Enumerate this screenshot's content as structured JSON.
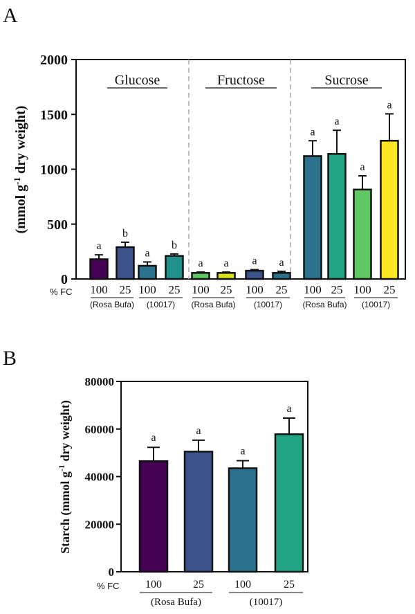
{
  "chart_data": [
    {
      "panel": "A",
      "type": "bar",
      "ylabel": "(mmol g-1 dry weight)",
      "ylabel_main": "(mmol g",
      "ylabel_sup": "-1",
      "ylabel_tail": " dry weight)",
      "ylim": [
        0,
        2000
      ],
      "yticks": [
        "0",
        "500",
        "1000",
        "1500",
        "2000"
      ],
      "ytick_values": [
        0,
        500,
        1000,
        1500,
        2000
      ],
      "x_prefix": "% FC",
      "groups": [
        {
          "name": "Glucose",
          "bars": [
            {
              "fc": "100",
              "genotype": "Rosa Bufa",
              "value": 180,
              "error": 40,
              "letter": "a",
              "color": "#440154"
            },
            {
              "fc": "25",
              "genotype": "Rosa Bufa",
              "value": 290,
              "error": 45,
              "letter": "b",
              "color": "#3b528b"
            },
            {
              "fc": "100",
              "genotype": "10017",
              "value": 120,
              "error": 35,
              "letter": "a",
              "color": "#2c728e"
            },
            {
              "fc": "25",
              "genotype": "10017",
              "value": 210,
              "error": 18,
              "letter": "b",
              "color": "#21918c"
            }
          ],
          "genotype_labels": [
            "(Rosa Bufa)",
            "(10017)"
          ]
        },
        {
          "name": "Fructose",
          "bars": [
            {
              "fc": "100",
              "genotype": "Rosa Bufa",
              "value": 55,
              "error": 8,
              "letter": "a",
              "color": "#5ec962"
            },
            {
              "fc": "25",
              "genotype": "Rosa Bufa",
              "value": 55,
              "error": 8,
              "letter": "a",
              "color": "#d7e219"
            },
            {
              "fc": "100",
              "genotype": "10017",
              "value": 75,
              "error": 10,
              "letter": "a",
              "color": "#3b528b"
            },
            {
              "fc": "25",
              "genotype": "10017",
              "value": 55,
              "error": 15,
              "letter": "a",
              "color": "#2c728e"
            }
          ],
          "genotype_labels": [
            "(Rosa Bufa)",
            "(10017)"
          ]
        },
        {
          "name": "Sucrose",
          "bars": [
            {
              "fc": "100",
              "genotype": "Rosa Bufa",
              "value": 1120,
              "error": 140,
              "letter": "a",
              "color": "#2c728e"
            },
            {
              "fc": "25",
              "genotype": "Rosa Bufa",
              "value": 1140,
              "error": 215,
              "letter": "a",
              "color": "#21a585"
            },
            {
              "fc": "100",
              "genotype": "10017",
              "value": 815,
              "error": 125,
              "letter": "a",
              "color": "#5ec962"
            },
            {
              "fc": "25",
              "genotype": "10017",
              "value": 1260,
              "error": 245,
              "letter": "a",
              "color": "#fde725"
            }
          ],
          "genotype_labels": [
            "(Rosa Bufa)",
            "(10017)"
          ]
        }
      ]
    },
    {
      "panel": "B",
      "type": "bar",
      "ylabel": "Starch (mmol g-1 dry weight)",
      "ylabel_main": "Starch (mmol g",
      "ylabel_sup": "-1",
      "ylabel_tail": " dry weight)",
      "ylim": [
        0,
        80000
      ],
      "yticks": [
        "0",
        "20000",
        "40000",
        "60000",
        "80000"
      ],
      "ytick_values": [
        0,
        20000,
        40000,
        60000,
        80000
      ],
      "x_prefix": "% FC",
      "bars": [
        {
          "fc": "100",
          "genotype": "Rosa Bufa",
          "value": 46500,
          "error": 5800,
          "letter": "a",
          "color": "#440154"
        },
        {
          "fc": "25",
          "genotype": "Rosa Bufa",
          "value": 50500,
          "error": 4800,
          "letter": "a",
          "color": "#3b528b"
        },
        {
          "fc": "100",
          "genotype": "10017",
          "value": 43500,
          "error": 3200,
          "letter": "a",
          "color": "#2c728e"
        },
        {
          "fc": "25",
          "genotype": "10017",
          "value": 57800,
          "error": 6800,
          "letter": "a",
          "color": "#21a585"
        }
      ],
      "genotype_labels": [
        "(Rosa Bufa)",
        "(10017)"
      ]
    }
  ]
}
